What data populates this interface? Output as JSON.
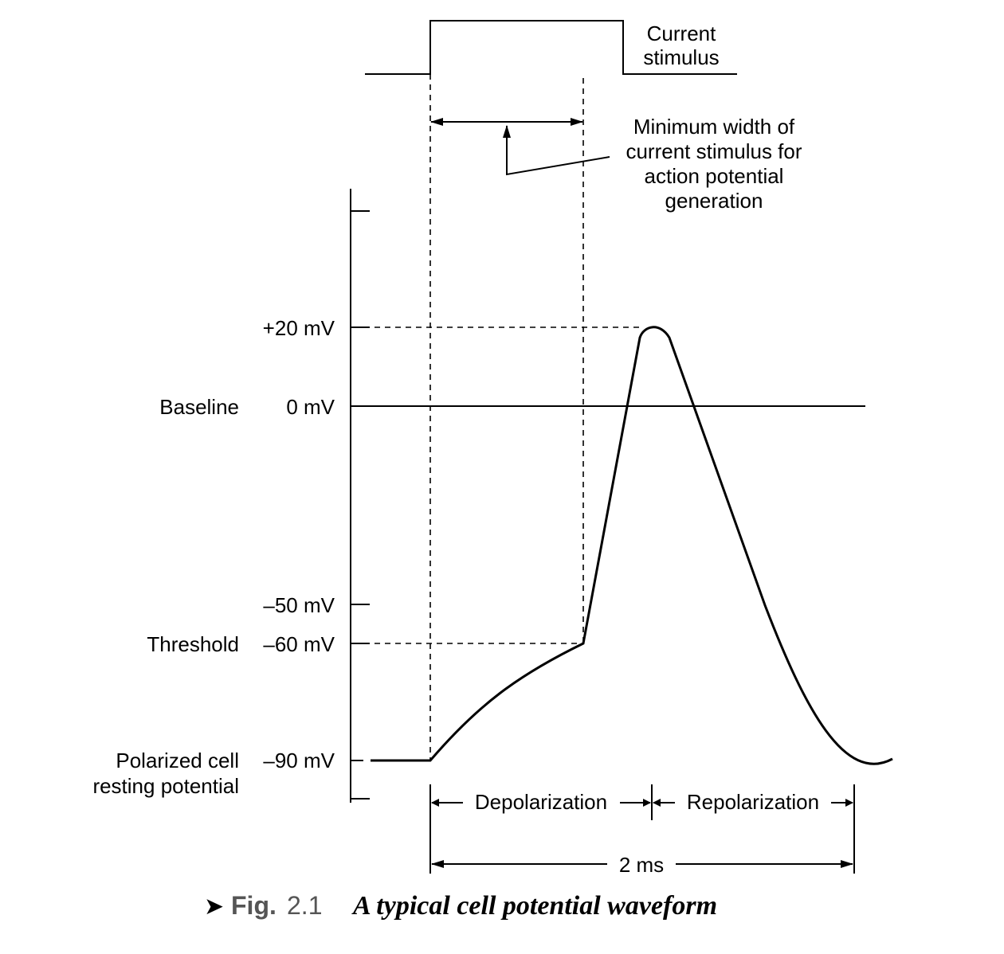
{
  "stimulus": {
    "label_line1": "Current",
    "label_line2": "stimulus"
  },
  "annotation": {
    "line1": "Minimum width of",
    "line2": "current stimulus for",
    "line3": "action potential",
    "line4": "generation"
  },
  "axis": {
    "ticks": [
      {
        "value": "+20 mV",
        "name": ""
      },
      {
        "value": "0 mV",
        "name": "Baseline"
      },
      {
        "value": "–50 mV",
        "name": ""
      },
      {
        "value": "–60 mV",
        "name": "Threshold"
      },
      {
        "value": "–90 mV",
        "name_line1": "Polarized cell",
        "name_line2": "resting potential"
      }
    ]
  },
  "phases": {
    "depolarization": "Depolarization",
    "repolarization": "Repolarization",
    "duration": "2 ms"
  },
  "caption": {
    "marker": "➤",
    "fig_label": "Fig.",
    "fig_number": "2.1",
    "title": "A typical cell potential waveform"
  }
}
